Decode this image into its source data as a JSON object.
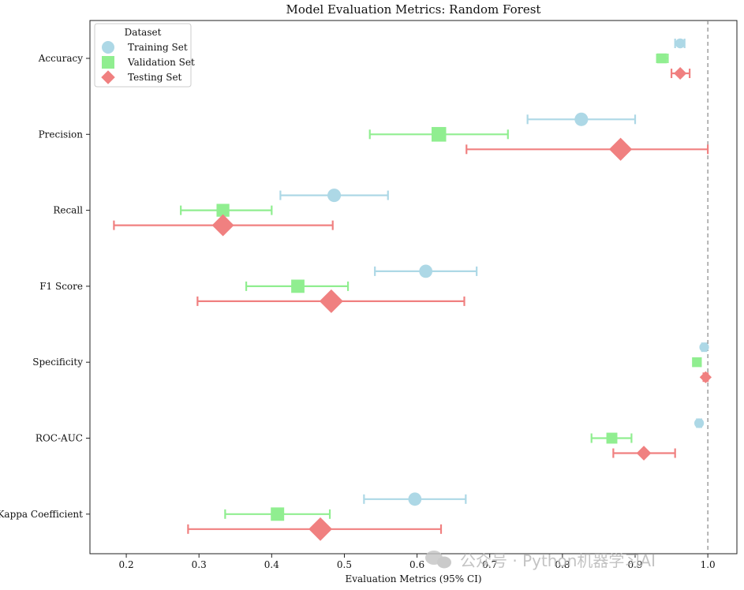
{
  "chart_data": {
    "type": "errorbar-forest",
    "title": "Model Evaluation Metrics: Random Forest",
    "xlabel": "Evaluation Metrics (95% CI)",
    "ylabel": "",
    "xlim": [
      0.15,
      1.04
    ],
    "x_ticks": [
      0.2,
      0.3,
      0.4,
      0.5,
      0.6,
      0.7,
      0.8,
      0.9,
      1.0
    ],
    "x_tick_labels": [
      "0.2",
      "0.3",
      "0.4",
      "0.5",
      "0.6",
      "0.7",
      "0.8",
      "0.9",
      "1.0"
    ],
    "reference_line": 1.0,
    "categories": [
      "Accuracy",
      "Precision",
      "Recall",
      "F1 Score",
      "Specificity",
      "ROC-AUC",
      "Kappa Coefficient"
    ],
    "legend": {
      "title": "Dataset",
      "placement": "top-left"
    },
    "series": [
      {
        "name": "Training Set",
        "color": "#add8e6",
        "marker": "circle",
        "values": [
          0.962,
          0.826,
          0.486,
          0.612,
          0.995,
          0.988,
          0.597
        ],
        "ci_low": [
          0.955,
          0.752,
          0.412,
          0.542,
          0.992,
          0.985,
          0.527
        ],
        "ci_high": [
          0.968,
          0.9,
          0.56,
          0.682,
          0.998,
          0.991,
          0.667
        ]
      },
      {
        "name": "Validation Set",
        "color": "#90ee90",
        "marker": "square",
        "values": [
          0.937,
          0.63,
          0.333,
          0.436,
          0.985,
          0.868,
          0.408
        ],
        "ci_low": [
          0.93,
          0.535,
          0.275,
          0.365,
          0.98,
          0.84,
          0.336
        ],
        "ci_high": [
          0.945,
          0.725,
          0.4,
          0.505,
          0.99,
          0.895,
          0.48
        ]
      },
      {
        "name": "Testing Set",
        "color": "#f08080",
        "marker": "diamond",
        "values": [
          0.962,
          0.88,
          0.333,
          0.482,
          0.997,
          0.912,
          0.467
        ],
        "ci_low": [
          0.95,
          0.668,
          0.183,
          0.298,
          0.994,
          0.87,
          0.285
        ],
        "ci_high": [
          0.975,
          1.0,
          0.484,
          0.665,
          1.0,
          0.955,
          0.633
        ]
      }
    ]
  },
  "watermark": "公众号 · Python机器学习AI"
}
